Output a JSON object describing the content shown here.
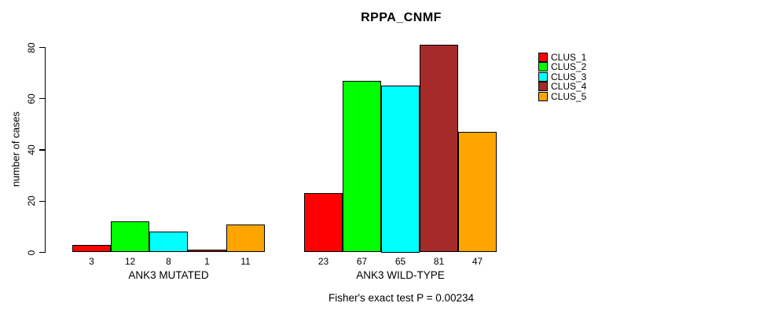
{
  "chart_data": {
    "type": "bar",
    "title": "RPPA_CNMF",
    "ylabel": "number of cases",
    "xlabel": "",
    "ylim": [
      0,
      80
    ],
    "yticks": [
      0,
      20,
      40,
      60,
      80
    ],
    "grid": false,
    "legend_position": "right",
    "series": [
      {
        "name": "CLUS_1",
        "color": "#FF0000"
      },
      {
        "name": "CLUS_2",
        "color": "#00FF00"
      },
      {
        "name": "CLUS_3",
        "color": "#00FFFF"
      },
      {
        "name": "CLUS_4",
        "color": "#A52A2A"
      },
      {
        "name": "CLUS_5",
        "color": "#FFA500"
      }
    ],
    "groups": [
      {
        "label": "ANK3 MUTATED",
        "values": [
          3,
          12,
          8,
          1,
          11
        ]
      },
      {
        "label": "ANK3 WILD-TYPE",
        "values": [
          23,
          67,
          65,
          81,
          47
        ]
      }
    ],
    "subtitle": "Fisher's exact test P = 0.00234"
  }
}
